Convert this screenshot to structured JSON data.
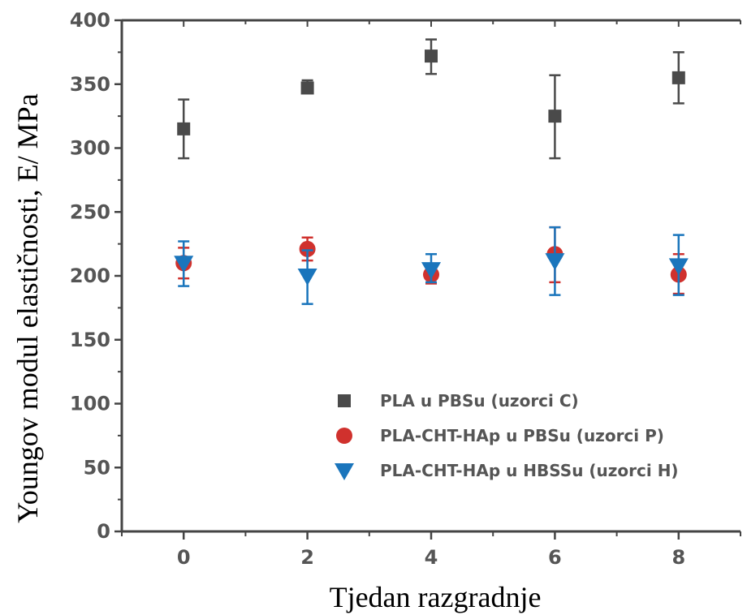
{
  "chart_data": {
    "type": "scatter",
    "title": "",
    "xlabel": "Tjedan razgradnje",
    "ylabel": "Youngov modul elastičnosti, E/ MPa",
    "x_ticks": [
      0,
      2,
      4,
      6,
      8
    ],
    "y_ticks": [
      0,
      50,
      100,
      150,
      200,
      250,
      300,
      350,
      400
    ],
    "xlim": [
      -1,
      9
    ],
    "ylim": [
      0,
      400
    ],
    "grid": false,
    "legend_position": "bottom-right",
    "series": [
      {
        "name": "PLA u PBSu (uzorci C)",
        "marker": "square",
        "color": "#4a4a4a",
        "x": [
          0,
          2,
          4,
          6,
          8
        ],
        "y": [
          315,
          347,
          372,
          325,
          355
        ],
        "err_low": [
          292,
          343,
          358,
          292,
          335
        ],
        "err_high": [
          338,
          353,
          385,
          357,
          375
        ]
      },
      {
        "name": "PLA-CHT-HAp u PBSu (uzorci P)",
        "marker": "circle",
        "color": "#d0312d",
        "x": [
          0,
          2,
          4,
          6,
          8
        ],
        "y": [
          210,
          221,
          201,
          217,
          201
        ],
        "err_low": [
          198,
          212,
          194,
          195,
          186
        ],
        "err_high": [
          222,
          230,
          209,
          238,
          217
        ]
      },
      {
        "name": "PLA-CHT-HAp u HBSSu (uzorci H)",
        "marker": "triangle-down",
        "color": "#1a75bc",
        "x": [
          0,
          2,
          4,
          6,
          8
        ],
        "y": [
          210,
          200,
          205,
          212,
          208
        ],
        "err_low": [
          192,
          178,
          195,
          185,
          185
        ],
        "err_high": [
          227,
          220,
          217,
          238,
          232
        ]
      }
    ]
  }
}
